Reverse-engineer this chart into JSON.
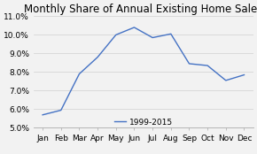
{
  "title": "Monthly Share of Annual Existing Home Sales",
  "months": [
    "Jan",
    "Feb",
    "Mar",
    "Apr",
    "May",
    "Jun",
    "Jul",
    "Aug",
    "Sep",
    "Oct",
    "Nov",
    "Dec"
  ],
  "values": [
    5.7,
    5.95,
    7.9,
    8.8,
    10.0,
    10.4,
    9.85,
    10.05,
    8.45,
    8.35,
    7.55,
    7.85
  ],
  "ylim": [
    5.0,
    11.0
  ],
  "yticks": [
    5.0,
    6.0,
    7.0,
    8.0,
    9.0,
    10.0,
    11.0
  ],
  "line_color": "#4472C4",
  "legend_label": "1999-2015",
  "background_color": "#f2f2f2",
  "title_fontsize": 8.5,
  "tick_fontsize": 6.5,
  "legend_fontsize": 6.5
}
